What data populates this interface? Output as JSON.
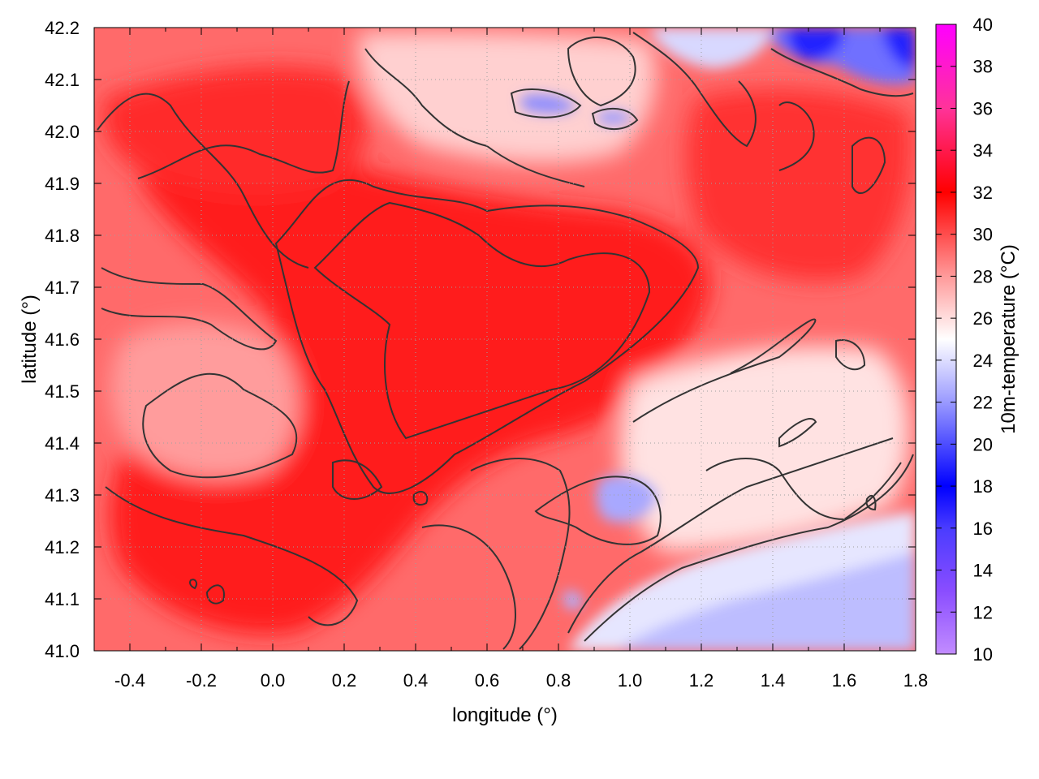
{
  "chart_data": {
    "type": "heatmap",
    "title": "",
    "xlabel": "longitude (°)",
    "ylabel": "latitude (°)",
    "colorbar_label": "10m-temperature (°C)",
    "xlim": [
      -0.5,
      1.8
    ],
    "ylim": [
      41.0,
      42.2
    ],
    "x_ticks": [
      "-0.4",
      "-0.2",
      "0.0",
      "0.2",
      "0.4",
      "0.6",
      "0.8",
      "1.0",
      "1.2",
      "1.4",
      "1.6",
      "1.8"
    ],
    "y_ticks": [
      "41.0",
      "41.1",
      "41.2",
      "41.3",
      "41.4",
      "41.5",
      "41.6",
      "41.7",
      "41.8",
      "41.9",
      "42.0",
      "42.1",
      "42.2"
    ],
    "colorbar_range": [
      10,
      40
    ],
    "colorbar_ticks": [
      "10",
      "12",
      "14",
      "16",
      "18",
      "20",
      "22",
      "24",
      "26",
      "28",
      "30",
      "32",
      "34",
      "36",
      "38",
      "40"
    ],
    "colormap": [
      {
        "value": 10,
        "color": "#c28cff"
      },
      {
        "value": 13,
        "color": "#8a4dff"
      },
      {
        "value": 16,
        "color": "#4a3cff"
      },
      {
        "value": 18,
        "color": "#0000ff"
      },
      {
        "value": 22,
        "color": "#9a9aff"
      },
      {
        "value": 25,
        "color": "#ffffff"
      },
      {
        "value": 28,
        "color": "#ff9a9a"
      },
      {
        "value": 32,
        "color": "#ff0000"
      },
      {
        "value": 36,
        "color": "#ff3399"
      },
      {
        "value": 40,
        "color": "#ff00ff"
      }
    ],
    "grid": true,
    "contours": true,
    "field_summary": [
      {
        "region": "central interior",
        "lon": [
          0.3,
          1.1
        ],
        "lat": [
          41.4,
          41.9
        ],
        "value": 32
      },
      {
        "region": "northeast corner",
        "lon": [
          1.4,
          1.8
        ],
        "lat": [
          42.05,
          42.2
        ],
        "value": 18
      },
      {
        "region": "southeast coast",
        "lon": [
          1.0,
          1.8
        ],
        "lat": [
          41.0,
          41.2
        ],
        "value": 23
      },
      {
        "region": "west plains",
        "lon": [
          -0.4,
          0.1
        ],
        "lat": [
          41.4,
          41.6
        ],
        "value": 28
      }
    ]
  }
}
